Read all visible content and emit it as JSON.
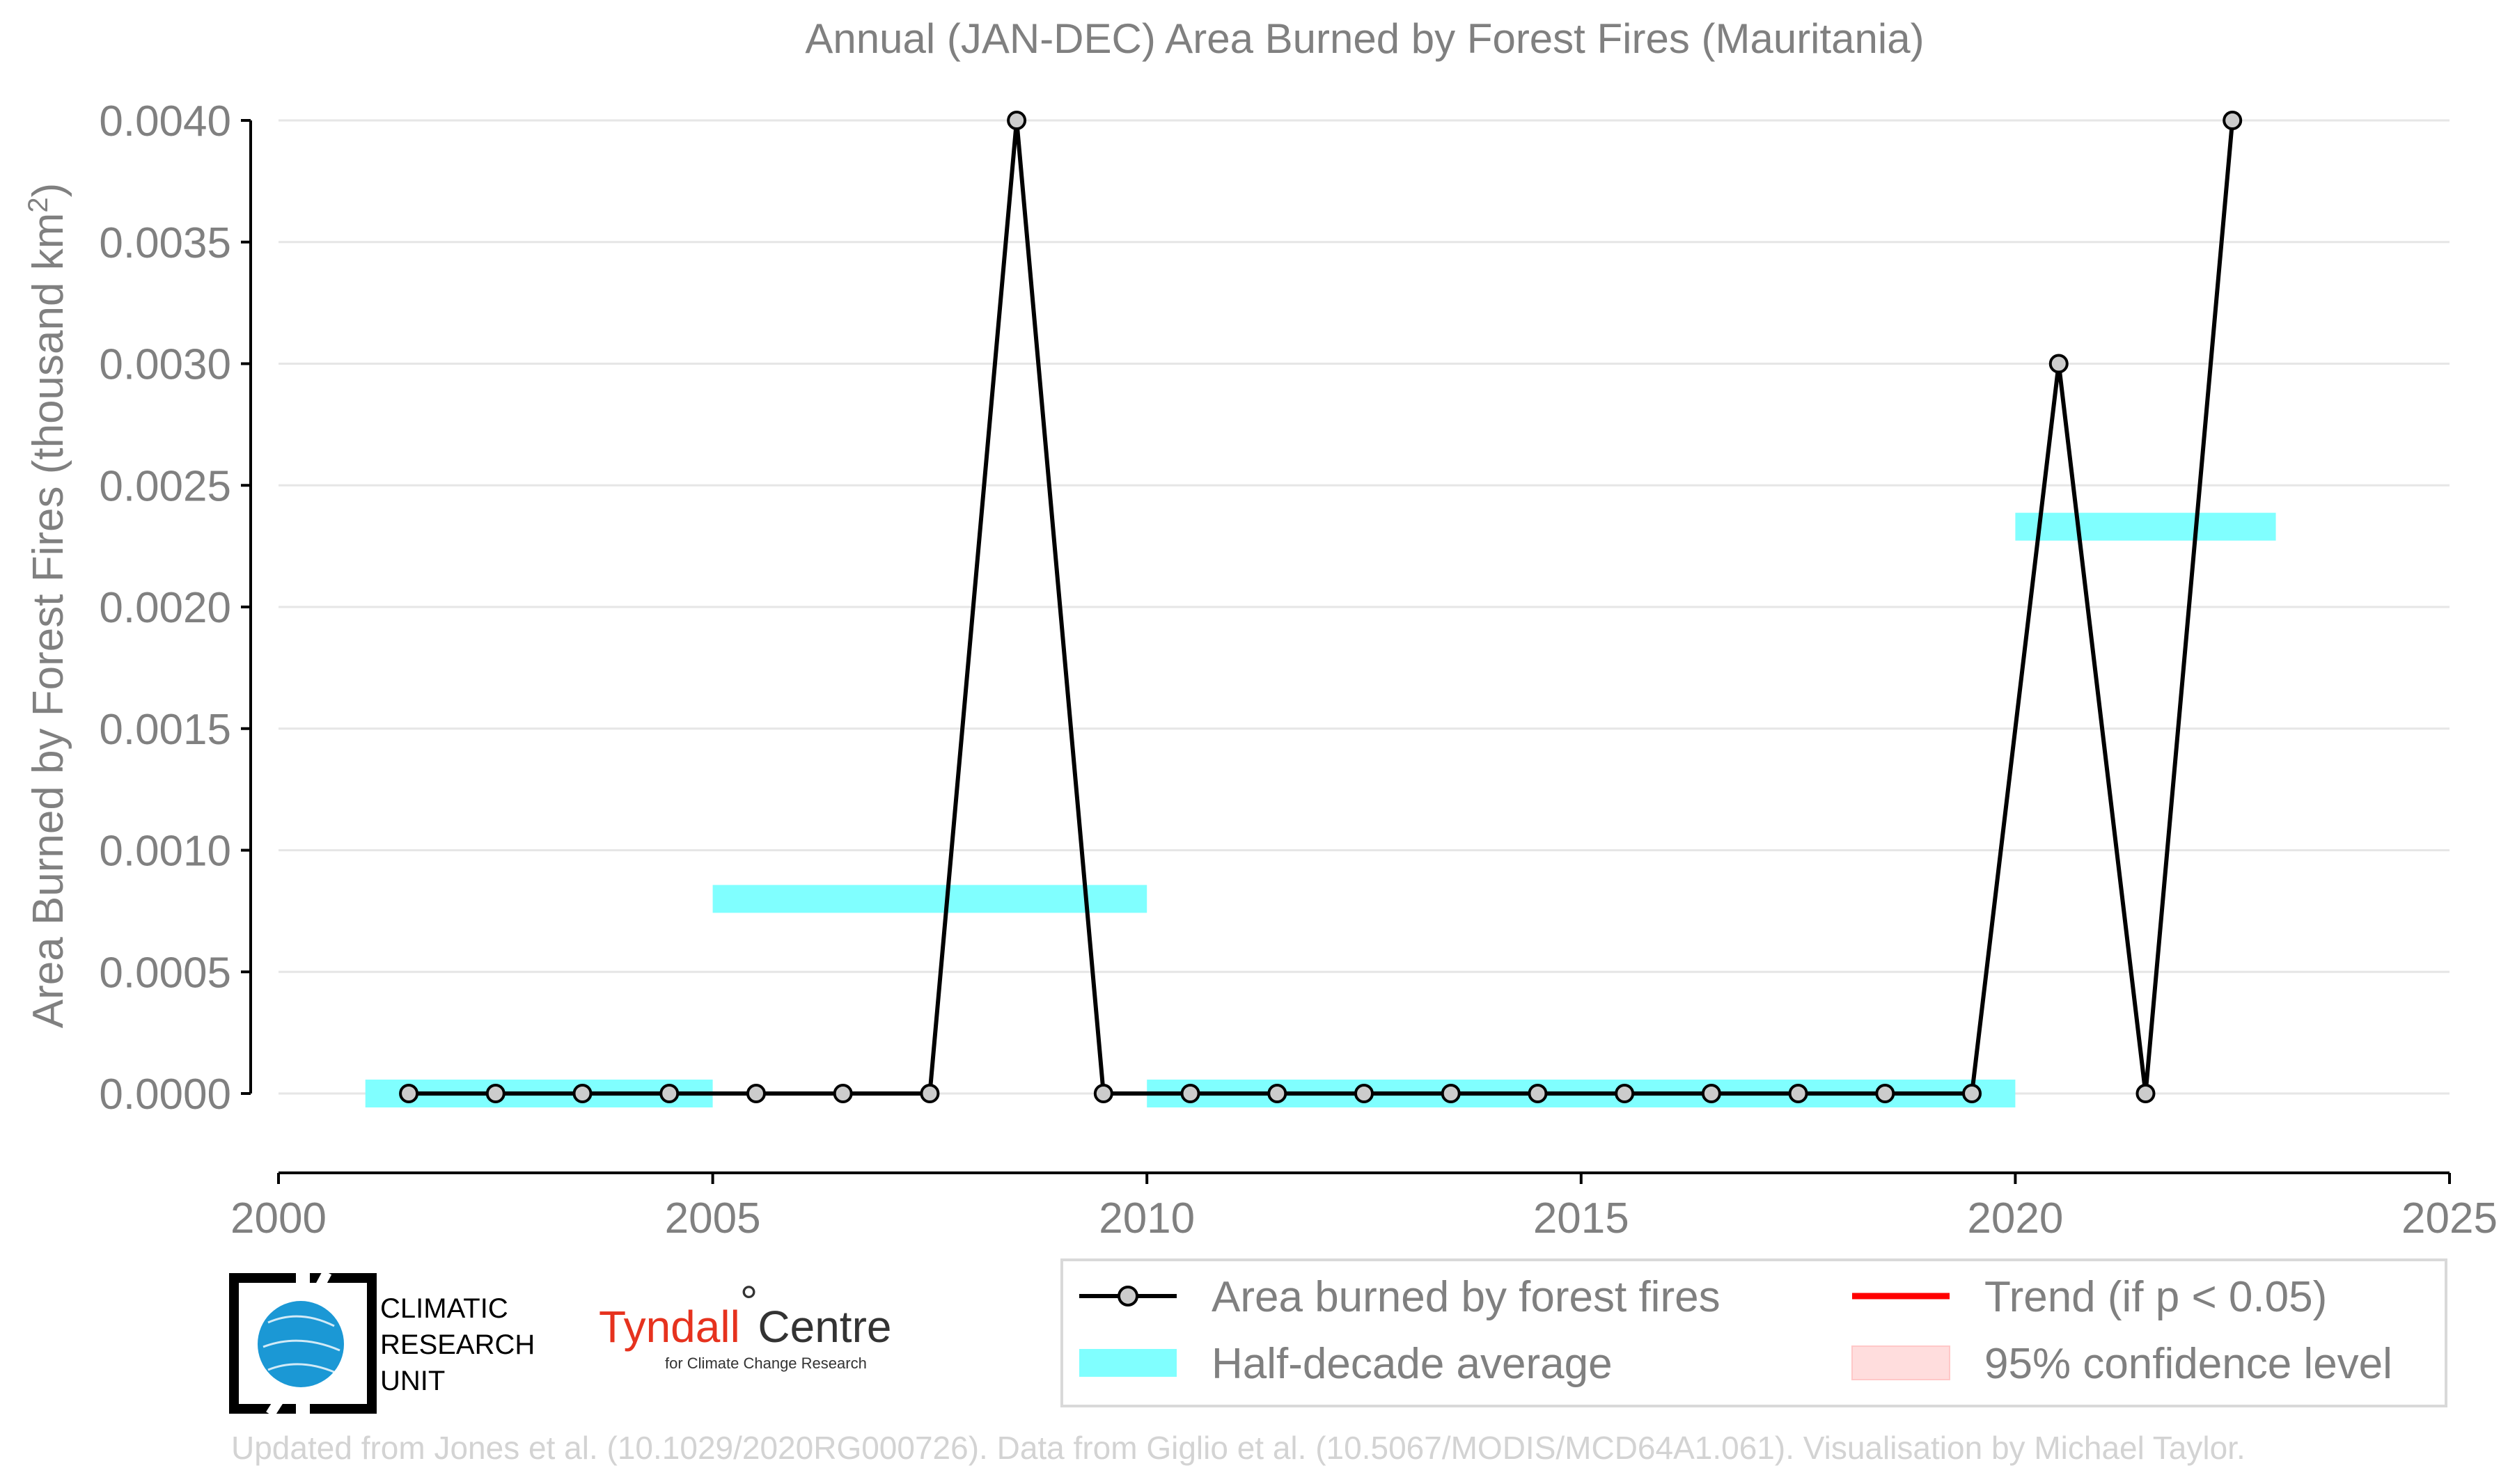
{
  "chart_data": {
    "type": "line",
    "title": "Annual (JAN-DEC) Area Burned by Forest Fires (Mauritania)",
    "ylabel": "Area Burned by Forest Fires (thousand km",
    "ylabel_sup": "2",
    "ylabel_close": ")",
    "xlabel": "",
    "xlim": [
      2000,
      2025
    ],
    "ylim": [
      -0.0003,
      0.004
    ],
    "x_ticks": [
      2000,
      2005,
      2010,
      2015,
      2020,
      2025
    ],
    "x_tick_labels": [
      "2000",
      "2005",
      "2010",
      "2015",
      "2020",
      "2025"
    ],
    "y_ticks": [
      0,
      0.0005,
      0.001,
      0.0015,
      0.002,
      0.0025,
      0.003,
      0.0035,
      0.004
    ],
    "y_tick_labels": [
      "0.0000",
      "0.0005",
      "0.0010",
      "0.0015",
      "0.0020",
      "0.0025",
      "0.0030",
      "0.0035",
      "0.0040"
    ],
    "grid": "horizontal",
    "series": [
      {
        "name": "Area burned by forest fires",
        "color": "#000000",
        "marker_fill": "#cccccc",
        "x": [
          2001.5,
          2002.5,
          2003.5,
          2004.5,
          2005.5,
          2006.5,
          2007.5,
          2008.5,
          2009.5,
          2010.5,
          2011.5,
          2012.5,
          2013.5,
          2014.5,
          2015.5,
          2016.5,
          2017.5,
          2018.5,
          2019.5,
          2020.5,
          2021.5,
          2022.5
        ],
        "y": [
          0,
          0,
          0,
          0,
          0,
          0,
          0,
          0.004,
          0,
          0,
          0,
          0,
          0,
          0,
          0,
          0,
          0,
          0,
          0,
          0.003,
          0,
          0.004
        ]
      }
    ],
    "half_decade_average": {
      "name": "Half-decade average",
      "color": "#80ffff",
      "segments": [
        {
          "x0": 2001,
          "x1": 2005,
          "y": 0.0
        },
        {
          "x0": 2005,
          "x1": 2010,
          "y": 0.0008
        },
        {
          "x0": 2010,
          "x1": 2020,
          "y": 0.0
        },
        {
          "x0": 2020,
          "x1": 2023,
          "y": 0.00233
        }
      ]
    },
    "legend": {
      "placement": "bottom-right",
      "entries": [
        {
          "label": "Area burned by forest fires",
          "kind": "line-marker",
          "color": "#000000"
        },
        {
          "label": "Trend (if p < 0.05)",
          "kind": "line",
          "color": "#ff0000"
        },
        {
          "label": "Half-decade average",
          "kind": "band",
          "color": "#80ffff"
        },
        {
          "label": "95% confidence level",
          "kind": "band",
          "color": "#ffdddd"
        }
      ]
    },
    "credit": "Updated from Jones et al. (10.1029/2020RG000726). Data from Giglio et al. (10.5067/MODIS/MCD64A1.061). Visualisation by Michael Taylor."
  },
  "logos": {
    "cru_lines": [
      "CLIMATIC",
      "RESEARCH",
      "UNIT"
    ],
    "tyndall_main": "Tyndall",
    "tyndall_degree": "°",
    "tyndall_centre": "Centre",
    "tyndall_sub": "for Climate Change Research"
  }
}
